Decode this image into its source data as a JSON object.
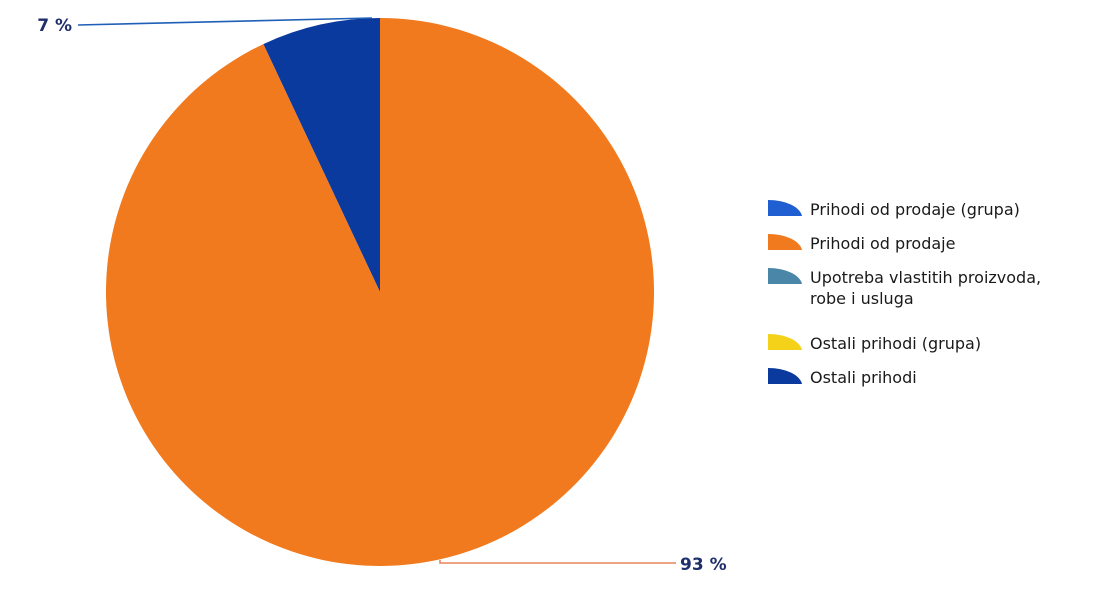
{
  "chart_data": {
    "type": "pie",
    "slices": [
      {
        "name": "Ostali prihodi",
        "value": 7,
        "label": "7 %",
        "color": "#0b3a9e"
      },
      {
        "name": "Prihodi od prodaje",
        "value": 93,
        "label": "93 %",
        "color": "#f27a1e"
      }
    ],
    "legend": {
      "placement": "right",
      "entries": [
        {
          "lines": [
            "Prihodi od prodaje (grupa)"
          ],
          "color": "#1f5fd1"
        },
        {
          "lines": [
            "Prihodi od prodaje"
          ],
          "color": "#f27a1e"
        },
        {
          "lines": [
            "Upotreba vlastitih proizvoda,",
            "robe i usluga"
          ],
          "color": "#4a86a8"
        },
        {
          "lines": [
            "Ostali prihodi (grupa)"
          ],
          "color": "#f5d21a"
        },
        {
          "lines": [
            "Ostali prihodi"
          ],
          "color": "#0b3a9e"
        }
      ]
    }
  }
}
